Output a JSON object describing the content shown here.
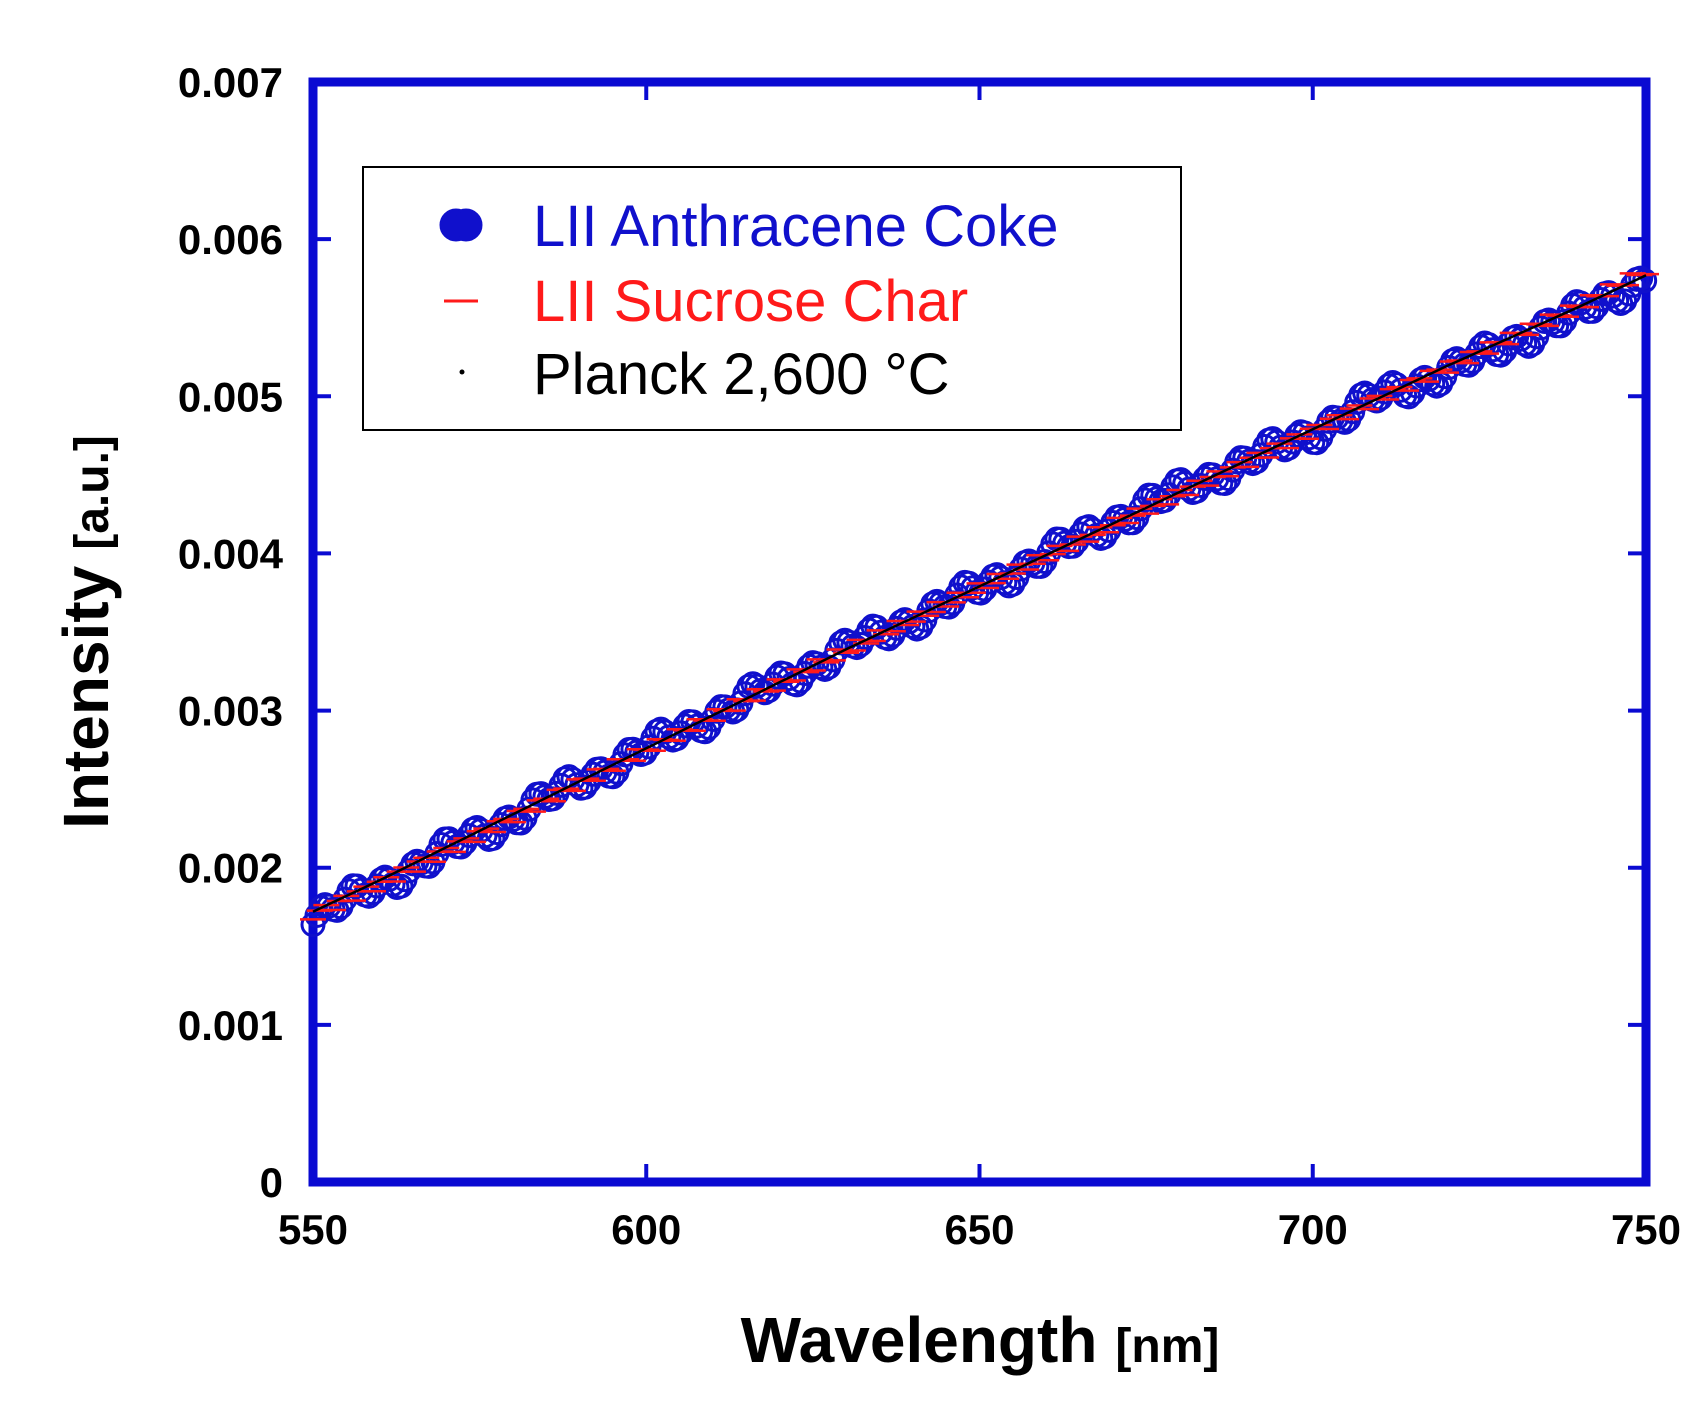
{
  "chart_data": {
    "type": "scatter",
    "title": "",
    "xlabel": "Wavelength",
    "xlabel_unit": "[nm]",
    "ylabel": "Intensity",
    "ylabel_unit": "[a.u.]",
    "xlim": [
      550,
      750
    ],
    "ylim": [
      0,
      0.007
    ],
    "xticks": [
      550,
      600,
      650,
      700,
      750
    ],
    "xtick_labels": [
      "550",
      "600",
      "650",
      "700",
      "750"
    ],
    "yticks": [
      0,
      0.001,
      0.002,
      0.003,
      0.004,
      0.005,
      0.006,
      0.007
    ],
    "ytick_labels": [
      "0",
      "0.001",
      "0.002",
      "0.003",
      "0.004",
      "0.005",
      "0.006",
      "0.007"
    ],
    "legend_position": "top-left",
    "series": [
      {
        "name": "LII Anthracene Coke",
        "marker": "circle",
        "color": "#1010cc",
        "x": [
          550,
          560,
          570,
          580,
          590,
          600,
          610,
          620,
          630,
          640,
          650,
          660,
          670,
          680,
          690,
          700,
          710,
          720,
          730,
          740,
          750
        ],
        "y": [
          0.00168,
          0.00189,
          0.00211,
          0.00232,
          0.00255,
          0.00276,
          0.00297,
          0.00318,
          0.00339,
          0.00358,
          0.00378,
          0.00398,
          0.0042,
          0.0044,
          0.00458,
          0.00477,
          0.005,
          0.00515,
          0.00535,
          0.00553,
          0.00575
        ]
      },
      {
        "name": "LII Sucrose Char",
        "marker": "dash",
        "color": "#ff1a1a",
        "x": [
          550,
          560,
          570,
          580,
          590,
          600,
          610,
          620,
          630,
          640,
          650,
          660,
          670,
          680,
          690,
          700,
          710,
          720,
          730,
          740,
          750
        ],
        "y": [
          0.0017,
          0.0019,
          0.00211,
          0.00232,
          0.00254,
          0.00275,
          0.00296,
          0.00317,
          0.00338,
          0.00358,
          0.00378,
          0.00398,
          0.00418,
          0.00438,
          0.00458,
          0.00478,
          0.00499,
          0.00518,
          0.00538,
          0.00557,
          0.0058
        ]
      },
      {
        "name": "Planck 2,600 °C",
        "marker": "line",
        "color": "#000000",
        "x": [
          550,
          560,
          570,
          580,
          590,
          600,
          610,
          620,
          630,
          640,
          650,
          660,
          670,
          680,
          690,
          700,
          710,
          720,
          730,
          740,
          750
        ],
        "y": [
          0.00172,
          0.00192,
          0.00213,
          0.00234,
          0.00255,
          0.00276,
          0.00297,
          0.00318,
          0.00339,
          0.00359,
          0.00379,
          0.00399,
          0.00419,
          0.00439,
          0.00459,
          0.00479,
          0.00499,
          0.00519,
          0.00538,
          0.00557,
          0.00577
        ]
      }
    ]
  },
  "colors": {
    "frame": "#0a0ad2",
    "anthracene": "#1010cc",
    "sucrose": "#ff1a1a",
    "planck": "#000000"
  }
}
